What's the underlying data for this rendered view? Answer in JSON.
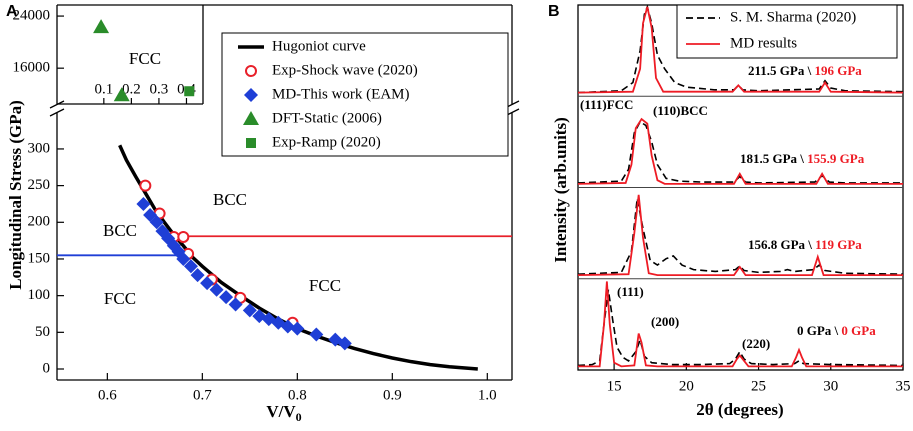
{
  "chart_data": [
    {
      "type": "scatter",
      "panel_label": "A",
      "ylabel": "Longitudinal Stress (GPa)",
      "xlabel": "V/V",
      "xlabel_sub": "0",
      "xlim": [
        0.547,
        1.026
      ],
      "ylim": [
        -15,
        349
      ],
      "xticks": [
        0.6,
        0.7,
        0.8,
        0.9,
        {
          "value": 1,
          "label": "1.0"
        }
      ],
      "yticks": [
        0,
        50,
        100,
        150,
        200,
        250,
        300
      ],
      "series": [
        {
          "name": "Hugoniot curve",
          "marker": "line",
          "color": "#000000",
          "x": [
            0.613,
            0.62,
            0.63,
            0.64,
            0.65,
            0.66,
            0.67,
            0.68,
            0.69,
            0.7,
            0.72,
            0.74,
            0.76,
            0.78,
            0.8,
            0.82,
            0.84,
            0.86,
            0.88,
            0.9,
            0.92,
            0.94,
            0.96,
            0.99
          ],
          "values": [
            305,
            285,
            262,
            240,
            218,
            200,
            183,
            168,
            152,
            140,
            118,
            100,
            83,
            68,
            55,
            45,
            36,
            28,
            21,
            15,
            10,
            6,
            3,
            0
          ]
        },
        {
          "name": "Exp-Shock wave (2020)",
          "marker": "circle-open",
          "color": "#e8202a",
          "x": [
            0.64,
            0.655,
            0.67,
            0.68,
            0.685,
            0.71,
            0.74,
            0.795
          ],
          "values": [
            250,
            212,
            180,
            180,
            157,
            122,
            97,
            63
          ]
        },
        {
          "name": "MD-This work (EAM)",
          "marker": "diamond",
          "color": "#1f3fd6",
          "x": [
            0.638,
            0.645,
            0.652,
            0.658,
            0.664,
            0.67,
            0.675,
            0.68,
            0.688,
            0.695,
            0.705,
            0.715,
            0.725,
            0.735,
            0.75,
            0.76,
            0.77,
            0.78,
            0.79,
            0.8,
            0.82,
            0.84,
            0.85
          ],
          "values": [
            225,
            210,
            200,
            188,
            178,
            168,
            160,
            150,
            140,
            128,
            117,
            108,
            98,
            88,
            80,
            72,
            68,
            63,
            58,
            55,
            47,
            40,
            35
          ]
        }
      ],
      "hlines": [
        {
          "value": 181,
          "from": 0.678,
          "color": "#e8202a"
        },
        {
          "value": 155,
          "to": 0.68,
          "color": "#1f3fd6"
        }
      ],
      "annotations": [
        {
          "text": "BCC",
          "color": "#e8202a"
        },
        {
          "text": "BCC",
          "color": "#1f3fd6"
        },
        {
          "text": "FCC",
          "color": "#1f3fd6"
        },
        {
          "text": "FCC",
          "color": "#e8202a"
        }
      ]
    },
    {
      "type": "scatter",
      "xlim": [
        -0.07,
        0.46
      ],
      "ylim": [
        10500,
        25700
      ],
      "xticks": [
        0.1,
        0.2,
        0.3,
        0.4
      ],
      "yticks": [
        16000,
        24000
      ],
      "annotation": {
        "text": "FCC",
        "color": "#2a8c2a"
      },
      "series": [
        {
          "name": "DFT-Static (2006)",
          "marker": "triangle",
          "color": "#2a8c2a",
          "x": [
            0.09,
            0.165
          ],
          "values": [
            22300,
            11850
          ]
        },
        {
          "name": "Exp-Ramp (2020)",
          "marker": "square",
          "color": "#2a8c2a",
          "x": [
            0.41
          ],
          "values": [
            12460
          ]
        }
      ]
    },
    {
      "type": "line",
      "panel_label": "B",
      "ylabel": "Intensity (arb.units)",
      "xlabel": "2θ (degrees)",
      "xlim": [
        12.5,
        35
      ],
      "ylim": [
        0,
        4
      ],
      "xticks": [
        15,
        20,
        25,
        30,
        35
      ],
      "band_edges": [
        1,
        2,
        3
      ],
      "series": [
        {
          "name": "S. M. Sharma (2020)",
          "color": "#000000",
          "dash": true,
          "x": [
            12.5,
            13.5,
            14.0,
            14.3,
            14.6,
            14.9,
            15.2,
            15.6,
            16.0,
            16.5,
            16.8,
            17.1,
            17.6,
            19,
            21,
            23,
            23.4,
            23.7,
            24.0,
            24.5,
            26,
            27.5,
            27.8,
            28.1,
            30,
            35,
            null,
            12.5,
            15.5,
            16.2,
            16.6,
            17.0,
            17.5,
            18.0,
            18.6,
            19.1,
            19.7,
            20.5,
            22,
            23.4,
            23.7,
            24.0,
            25,
            26.5,
            27,
            27.5,
            28.8,
            29.2,
            29.6,
            31,
            35,
            null,
            12.5,
            15.5,
            16.0,
            16.4,
            16.8,
            17.2,
            17.6,
            18.0,
            18.6,
            19.5,
            21,
            23.3,
            23.7,
            24.1,
            25,
            28.9,
            29.4,
            29.9,
            31,
            35,
            null,
            12.5,
            15.5,
            16.3,
            16.8,
            17.1,
            17.3,
            17.6,
            18.0,
            18.5,
            19.2,
            20,
            22,
            23.3,
            23.6,
            23.9,
            25,
            29.2,
            29.6,
            30.0,
            31,
            35
          ],
          "values": [
            0.05,
            0.06,
            0.1,
            0.5,
            0.88,
            0.55,
            0.25,
            0.14,
            0.1,
            0.2,
            0.33,
            0.15,
            0.08,
            0.06,
            0.06,
            0.07,
            0.12,
            0.2,
            0.12,
            0.07,
            0.06,
            0.07,
            0.1,
            0.07,
            0.06,
            0.05,
            null,
            1.05,
            1.07,
            1.3,
            1.88,
            1.55,
            1.2,
            1.15,
            1.22,
            1.25,
            1.15,
            1.1,
            1.08,
            1.1,
            1.14,
            1.09,
            1.07,
            1.08,
            1.1,
            1.08,
            1.1,
            1.15,
            1.09,
            1.06,
            1.05,
            null,
            2.05,
            2.07,
            2.2,
            2.6,
            2.72,
            2.68,
            2.5,
            2.25,
            2.1,
            2.07,
            2.06,
            2.06,
            2.12,
            2.06,
            2.05,
            2.06,
            2.13,
            2.06,
            2.05,
            2.05,
            null,
            3.04,
            3.06,
            3.15,
            3.5,
            3.9,
            3.98,
            3.8,
            3.45,
            3.3,
            3.15,
            3.1,
            3.07,
            3.07,
            3.12,
            3.07,
            3.06,
            3.08,
            3.17,
            3.09,
            3.06,
            3.05
          ]
        },
        {
          "name": "MD results",
          "color": "#ee1c25",
          "dash": false,
          "x": [
            12.5,
            14.0,
            14.3,
            14.5,
            14.7,
            15.0,
            15.5,
            16.4,
            16.7,
            16.9,
            17.2,
            18,
            23.2,
            23.5,
            23.7,
            23.9,
            24.3,
            27.3,
            27.6,
            27.8,
            28.0,
            28.3,
            35,
            null,
            12.5,
            16.0,
            16.4,
            16.7,
            17.0,
            17.4,
            18,
            23.3,
            23.7,
            24.1,
            28.7,
            29.1,
            29.5,
            35,
            null,
            12.5,
            15.8,
            16.2,
            16.5,
            16.9,
            17.3,
            17.6,
            18.0,
            18.5,
            23.3,
            23.7,
            24.1,
            29.0,
            29.4,
            29.8,
            35,
            null,
            12.5,
            16.3,
            16.8,
            17.0,
            17.3,
            17.6,
            17.9,
            18.4,
            23.2,
            23.6,
            24.0,
            29.2,
            29.6,
            30.0,
            35
          ],
          "values": [
            0.04,
            0.04,
            0.5,
            0.97,
            0.5,
            0.08,
            0.04,
            0.05,
            0.4,
            0.3,
            0.05,
            0.04,
            0.04,
            0.12,
            0.16,
            0.12,
            0.04,
            0.04,
            0.14,
            0.22,
            0.14,
            0.04,
            0.04,
            null,
            1.04,
            1.05,
            1.5,
            1.92,
            1.45,
            1.06,
            1.04,
            1.04,
            1.13,
            1.04,
            1.04,
            1.24,
            1.04,
            1.04,
            null,
            2.04,
            2.05,
            2.25,
            2.65,
            2.75,
            2.7,
            2.35,
            2.08,
            2.04,
            2.04,
            2.15,
            2.04,
            2.04,
            2.15,
            2.04,
            2.04,
            null,
            3.04,
            3.05,
            3.3,
            3.8,
            3.98,
            3.75,
            3.2,
            3.05,
            3.05,
            3.12,
            3.05,
            3.05,
            3.15,
            3.05,
            3.04
          ]
        }
      ],
      "pressure_labels": [
        {
          "exp": "211.5 GPa \\",
          "md": "196 GPa"
        },
        {
          "exp": "181.5 GPa \\",
          "md": "155.9 GPa"
        },
        {
          "exp": "156.8 GPa \\",
          "md": "119 GPa"
        },
        {
          "exp": "0 GPa \\",
          "md": "0 GPa"
        }
      ],
      "peak_labels": [
        "(111)FCC",
        "(110)BCC",
        "(111)",
        "(200)",
        "(220)"
      ]
    }
  ]
}
